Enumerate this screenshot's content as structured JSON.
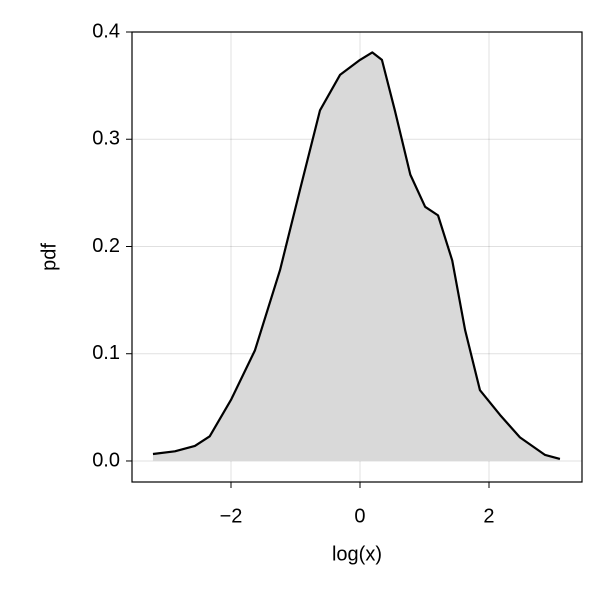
{
  "chart_data": {
    "type": "area",
    "x_label": "log(x)",
    "y_label": "pdf",
    "x": [
      -3.21,
      -2.87,
      -2.56,
      -2.33,
      -2.0,
      -1.63,
      -1.24,
      -0.93,
      -0.62,
      -0.31,
      0,
      0.19,
      0.34,
      0.54,
      0.78,
      1.01,
      1.21,
      1.43,
      1.63,
      1.86,
      2.17,
      2.48,
      2.87,
      3.1
    ],
    "values": [
      0.0065,
      0.009,
      0.014,
      0.023,
      0.057,
      0.103,
      0.178,
      0.253,
      0.327,
      0.36,
      0.374,
      0.381,
      0.374,
      0.327,
      0.267,
      0.237,
      0.229,
      0.187,
      0.122,
      0.066,
      0.043,
      0.022,
      0.0056,
      0.0019
    ],
    "color": "#000000",
    "fill": "#d9d9d9",
    "xlim": [
      -3.535,
      3.442
    ],
    "ylim": [
      -0.0196,
      0.4
    ],
    "xticks": [
      {
        "value": -2,
        "label": "−2"
      },
      0,
      2
    ],
    "yticks": [
      {
        "value": 0,
        "label": "0.0"
      },
      0.1,
      0.2,
      0.3,
      0.4
    ],
    "grid": true
  }
}
